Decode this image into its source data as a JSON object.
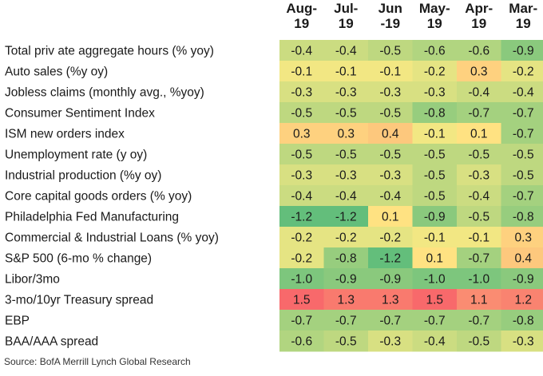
{
  "chart_data": {
    "type": "heatmap",
    "columns": [
      "Aug-\n19",
      "Jul-\n19",
      "Jun\n-19",
      "May-\n19",
      "Apr-\n19",
      "Mar-\n19"
    ],
    "rows": [
      {
        "label": "Total priv ate aggregate hours (% yoy)",
        "values": [
          -0.4,
          -0.4,
          -0.5,
          -0.6,
          -0.6,
          -0.9
        ]
      },
      {
        "label": "Auto sales (%y oy)",
        "values": [
          -0.1,
          -0.1,
          -0.1,
          -0.2,
          0.3,
          -0.2
        ]
      },
      {
        "label": "Jobless claims (monthly avg., %yoy)",
        "values": [
          -0.3,
          -0.3,
          -0.3,
          -0.3,
          -0.4,
          -0.4
        ]
      },
      {
        "label": "Consumer Sentiment Index",
        "values": [
          -0.5,
          -0.5,
          -0.5,
          -0.8,
          -0.7,
          -0.7
        ]
      },
      {
        "label": "ISM new orders index",
        "values": [
          0.3,
          0.3,
          0.4,
          -0.1,
          0.1,
          -0.7
        ]
      },
      {
        "label": "Unemployment rate (y oy)",
        "values": [
          -0.5,
          -0.5,
          -0.5,
          -0.5,
          -0.5,
          -0.5
        ]
      },
      {
        "label": "Industrial production (%y oy)",
        "values": [
          -0.3,
          -0.3,
          -0.3,
          -0.5,
          -0.3,
          -0.5
        ]
      },
      {
        "label": "Core capital goods orders (% yoy)",
        "values": [
          -0.4,
          -0.4,
          -0.4,
          -0.5,
          -0.4,
          -0.7
        ]
      },
      {
        "label": "Philadelphia Fed Manufacturing",
        "values": [
          -1.2,
          -1.2,
          0.1,
          -0.9,
          -0.5,
          -0.8
        ]
      },
      {
        "label": "Commercial & Industrial Loans (% yoy)",
        "values": [
          -0.2,
          -0.2,
          -0.2,
          -0.1,
          -0.1,
          0.3
        ]
      },
      {
        "label": "S&P 500 (6-mo % change)",
        "values": [
          -0.2,
          -0.8,
          -1.2,
          0.1,
          -0.7,
          0.4
        ]
      },
      {
        "label": "Libor/3mo",
        "values": [
          -1.0,
          -0.9,
          -0.9,
          -1.0,
          -1.0,
          -0.9
        ]
      },
      {
        "label": "3-mo/10yr Treasury spread",
        "values": [
          1.5,
          1.3,
          1.3,
          1.5,
          1.1,
          1.2
        ]
      },
      {
        "label": "EBP",
        "values": [
          -0.7,
          -0.7,
          -0.7,
          -0.7,
          -0.7,
          -0.8
        ]
      },
      {
        "label": "BAA/AAA spread",
        "values": [
          -0.6,
          -0.5,
          -0.3,
          -0.4,
          -0.5,
          -0.3
        ]
      }
    ],
    "value_format": "one decimal",
    "color_scale": {
      "low": "#63be7b",
      "mid": "#ffeb84",
      "high": "#f8696b",
      "midpoint": 0.0
    }
  },
  "source": "Source:  BofA Merrill Lynch Global Research"
}
